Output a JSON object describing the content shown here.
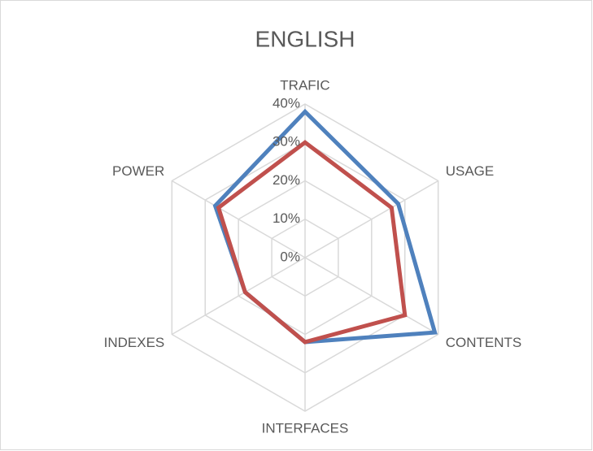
{
  "chart_data": {
    "type": "radar",
    "title": "ENGLISH",
    "categories": [
      "TRAFIC",
      "USAGE",
      "CONTENTS",
      "INTERFACES",
      "INDEXES",
      "POWER"
    ],
    "series": [
      {
        "color": "#4f81bd",
        "values": [
          38,
          28,
          39,
          22,
          18,
          27
        ]
      },
      {
        "color": "#c0504d",
        "values": [
          30,
          26,
          30,
          22,
          18,
          26
        ]
      }
    ],
    "ylim": [
      0,
      40
    ],
    "yticks": [
      {
        "value": 0,
        "label": "0%"
      },
      {
        "value": 10,
        "label": "10%"
      },
      {
        "value": 20,
        "label": "20%"
      },
      {
        "value": 30,
        "label": "30%"
      },
      {
        "value": 40,
        "label": "40%"
      }
    ],
    "grid": true
  }
}
